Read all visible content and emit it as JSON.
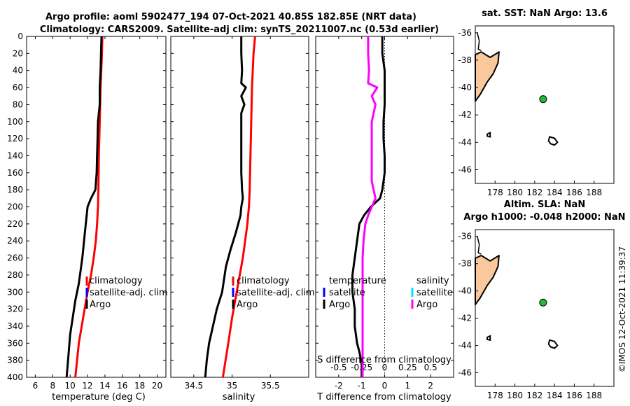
{
  "figure": {
    "title_line1": "Argo profile: aoml 5902477_194 07-Oct-2021 40.85S 182.85E (NRT data)",
    "title_line2": "Climatology: CARS2009. Satellite-adj clim: synTS_20211007.nc (0.53d earlier)",
    "timestamp": "©IMOS 12-Oct-2021 11:39:37"
  },
  "colors": {
    "argo": "#000000",
    "climatology": "#ff0000",
    "satellite_adj": "#0000ff",
    "salinity_diff": "#ff00ff",
    "salinity_satellite": "#00e5ff",
    "land": "#f9c89c",
    "float_marker": "#22bb33"
  },
  "chart_data": [
    {
      "id": "temperature",
      "type": "line",
      "xlabel": "temperature (deg C)",
      "ylabel": "",
      "xlim": [
        5,
        21
      ],
      "ylim": [
        400,
        0
      ],
      "xticks": [
        "6",
        "8",
        "10",
        "12",
        "14",
        "16",
        "18",
        "20"
      ],
      "xtick_values": [
        6,
        8,
        10,
        12,
        14,
        16,
        18,
        20
      ],
      "yticks": [
        "0",
        "20",
        "40",
        "60",
        "80",
        "100",
        "120",
        "140",
        "160",
        "180",
        "200",
        "220",
        "240",
        "260",
        "280",
        "300",
        "320",
        "340",
        "360",
        "380",
        "400"
      ],
      "ytick_values": [
        0,
        20,
        40,
        60,
        80,
        100,
        120,
        140,
        160,
        180,
        200,
        220,
        240,
        260,
        280,
        300,
        320,
        340,
        360,
        380,
        400
      ],
      "legend": [
        "climatology",
        "satellite-adj. clim",
        "Argo"
      ],
      "series": [
        {
          "name": "climatology",
          "color": "#ff0000",
          "x": [
            13.7,
            13.65,
            13.5,
            13.4,
            13.3,
            13.25,
            13.2,
            13.1,
            12.95,
            12.7,
            12.4,
            12.0,
            11.5,
            11.0,
            10.6
          ],
          "y": [
            0,
            20,
            60,
            100,
            140,
            180,
            200,
            220,
            240,
            260,
            280,
            300,
            330,
            360,
            400
          ]
        },
        {
          "name": "Argo",
          "color": "#000000",
          "x": [
            13.6,
            13.55,
            13.5,
            13.4,
            13.4,
            13.2,
            13.15,
            13.1,
            13.05,
            12.9,
            12.4,
            12.0,
            11.7,
            11.4,
            11.0,
            10.6,
            10.3,
            10.0,
            9.8,
            9.6
          ],
          "y": [
            0,
            20,
            40,
            60,
            80,
            100,
            120,
            140,
            160,
            180,
            190,
            200,
            230,
            260,
            290,
            310,
            330,
            350,
            375,
            400
          ]
        }
      ]
    },
    {
      "id": "salinity",
      "type": "line",
      "xlabel": "salinity",
      "ylabel": "",
      "xlim": [
        34.2,
        36.0
      ],
      "ylim": [
        400,
        0
      ],
      "xticks": [
        "34.5",
        "35",
        "35.5"
      ],
      "xtick_values": [
        34.5,
        35.0,
        35.5
      ],
      "legend": [
        "climatology",
        "satellite-adj. clim",
        "Argo"
      ],
      "series": [
        {
          "name": "climatology",
          "color": "#ff0000",
          "x": [
            35.3,
            35.28,
            35.26,
            35.25,
            35.24,
            35.23,
            35.22,
            35.2,
            35.17,
            35.14,
            35.1,
            35.06,
            35.0,
            34.95,
            34.88
          ],
          "y": [
            0,
            20,
            60,
            100,
            140,
            180,
            200,
            220,
            240,
            260,
            280,
            300,
            330,
            360,
            400
          ]
        },
        {
          "name": "Argo",
          "color": "#000000",
          "x": [
            35.12,
            35.12,
            35.13,
            35.12,
            35.18,
            35.12,
            35.16,
            35.12,
            35.12,
            35.12,
            35.13,
            35.14,
            35.12,
            35.11,
            35.05,
            34.98,
            34.92,
            34.87,
            34.8,
            34.75,
            34.7,
            34.67,
            34.65
          ],
          "y": [
            0,
            20,
            40,
            55,
            60,
            70,
            80,
            90,
            120,
            160,
            180,
            190,
            200,
            210,
            230,
            250,
            270,
            300,
            320,
            340,
            360,
            380,
            400
          ]
        }
      ]
    },
    {
      "id": "difference",
      "type": "line",
      "xlabel": "T difference from climatology",
      "xlabel_top": "S difference from climatology",
      "xlim": [
        -3.0,
        3.0
      ],
      "ylim": [
        400,
        0
      ],
      "xticks": [
        "-2",
        "-1",
        "0",
        "1",
        "2"
      ],
      "xtick_values": [
        -2,
        -1,
        0,
        1,
        2
      ],
      "s_xticks": [
        "-0.5",
        "-0.25",
        "0",
        "0.25",
        "0.5"
      ],
      "s_xtick_values": [
        -0.5,
        -0.25,
        0,
        0.25,
        0.5
      ],
      "s_scale": 0.25,
      "legend_temperature_title": "temperature",
      "legend_salinity_title": "salinity",
      "legend_temperature": [
        "satellite",
        "Argo"
      ],
      "legend_salinity": [
        "satellite",
        "Argo"
      ],
      "series": [
        {
          "name": "T difference Argo",
          "color": "#000000",
          "x": [
            -0.1,
            -0.1,
            0.0,
            0.0,
            0.0,
            -0.05,
            -0.05,
            0.0,
            0.0,
            -0.05,
            -0.1,
            -0.2,
            -0.6,
            -0.9,
            -1.1,
            -1.2,
            -1.3,
            -1.4,
            -1.4,
            -1.3,
            -1.3,
            -1.2,
            -1.1,
            -1.0,
            -1.0
          ],
          "y": [
            0,
            20,
            40,
            60,
            80,
            100,
            120,
            140,
            160,
            170,
            180,
            190,
            200,
            210,
            220,
            240,
            260,
            280,
            300,
            320,
            340,
            360,
            370,
            385,
            400
          ]
        },
        {
          "name": "S difference Argo",
          "color": "#ff00ff",
          "x": [
            -0.18,
            -0.18,
            -0.17,
            -0.18,
            -0.08,
            -0.14,
            -0.1,
            -0.14,
            -0.14,
            -0.14,
            -0.12,
            -0.1,
            -0.14,
            -0.18,
            -0.21,
            -0.23,
            -0.24,
            -0.24,
            -0.24,
            -0.24,
            -0.24,
            -0.24,
            -0.24,
            -0.24
          ],
          "y": [
            0,
            20,
            40,
            55,
            60,
            70,
            80,
            100,
            140,
            170,
            180,
            190,
            200,
            210,
            220,
            240,
            260,
            280,
            300,
            320,
            340,
            360,
            380,
            400
          ]
        }
      ]
    },
    {
      "id": "map_sst",
      "type": "scatter",
      "title": "sat. SST: NaN Argo: 13.6",
      "xlim": [
        176,
        190
      ],
      "ylim": [
        -47,
        -35.5
      ],
      "xticks": [
        "178",
        "180",
        "182",
        "184",
        "186",
        "188"
      ],
      "xtick_values": [
        178,
        180,
        182,
        184,
        186,
        188
      ],
      "yticks": [
        "-36",
        "-38",
        "-40",
        "-42",
        "-44",
        "-46"
      ],
      "ytick_values": [
        -36,
        -38,
        -40,
        -42,
        -44,
        -46
      ],
      "float_position": {
        "lon": 182.85,
        "lat": -40.85
      }
    },
    {
      "id": "map_sla",
      "type": "scatter",
      "title_line1": "Altim. SLA: NaN",
      "title_line2": "Argo h1000: -0.048 h2000: NaN",
      "xlim": [
        176,
        190
      ],
      "ylim": [
        -47,
        -35.5
      ],
      "xticks": [
        "178",
        "180",
        "182",
        "184",
        "186",
        "188"
      ],
      "xtick_values": [
        178,
        180,
        182,
        184,
        186,
        188
      ],
      "yticks": [
        "-36",
        "-38",
        "-40",
        "-42",
        "-44",
        "-46"
      ],
      "ytick_values": [
        -36,
        -38,
        -40,
        -42,
        -44,
        -46
      ],
      "float_position": {
        "lon": 182.85,
        "lat": -40.85
      }
    }
  ]
}
